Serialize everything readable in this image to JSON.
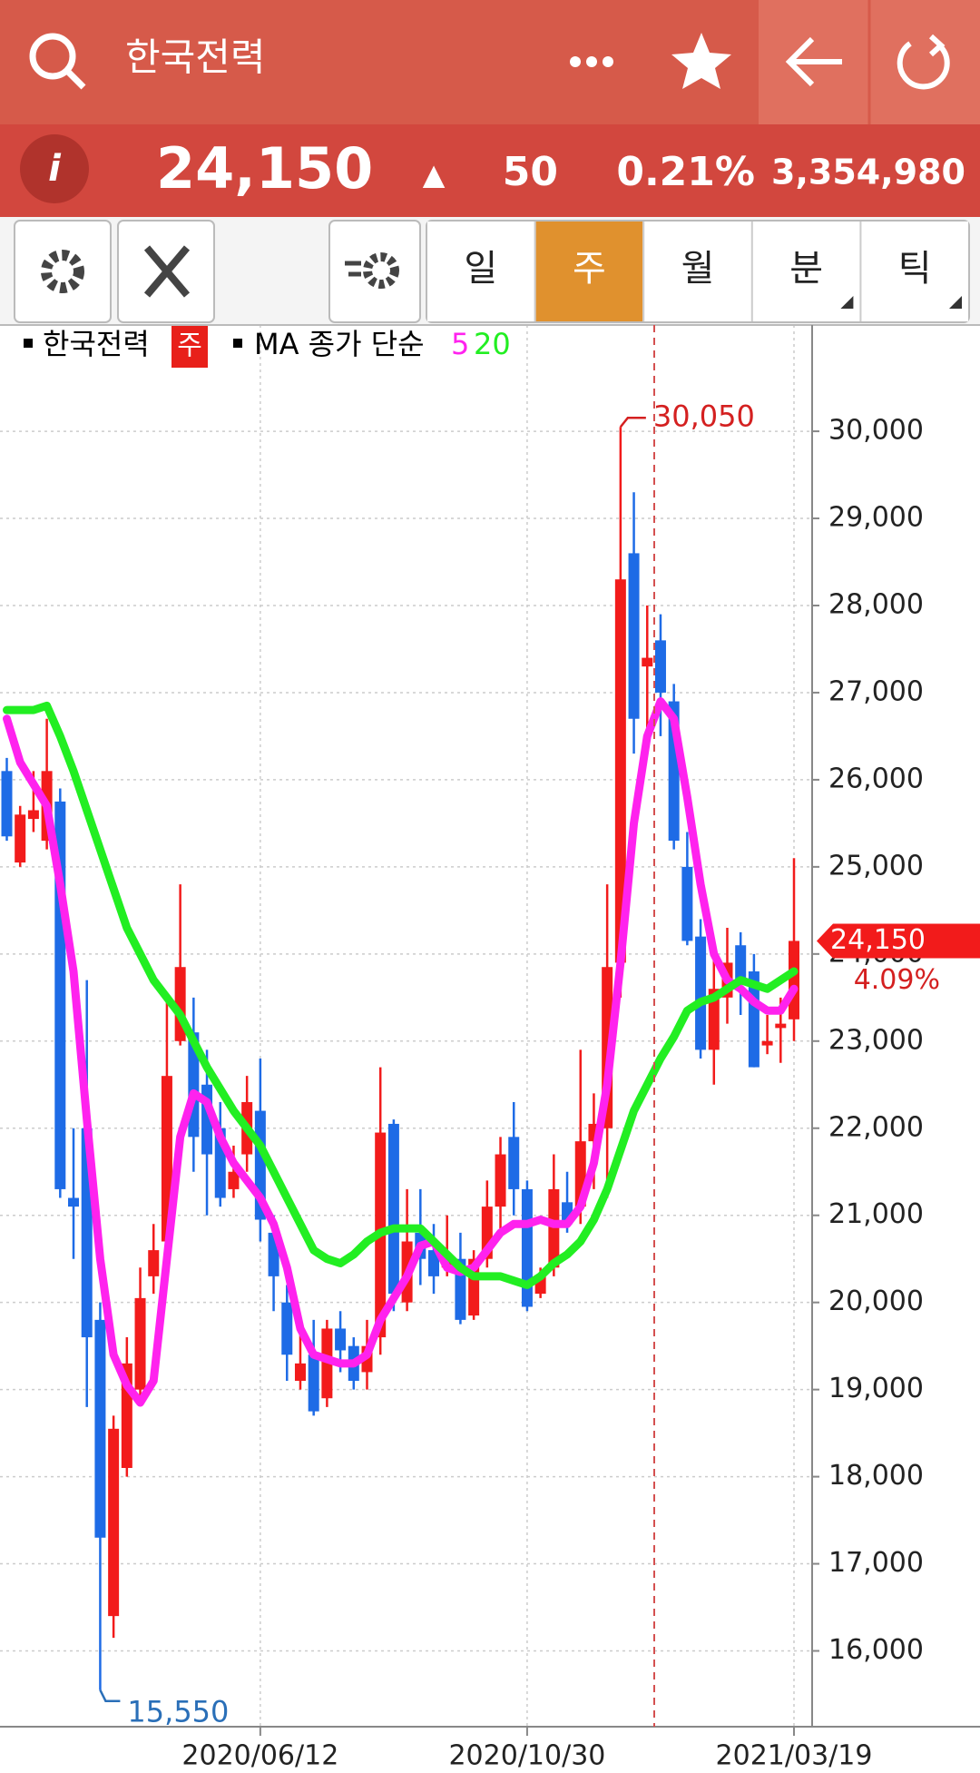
{
  "header": {
    "query": "한국전력",
    "price": "24,150",
    "arrow": "▲",
    "change": "50",
    "change_pct": "0.21%",
    "volume": "3,354,980"
  },
  "tabs": [
    "일",
    "주",
    "월",
    "분",
    "틱"
  ],
  "active_tab": "주",
  "chart_data": {
    "type": "candlestick",
    "period": "주",
    "ma_legend_title": "MA 종가 단순",
    "categories": [
      null,
      null,
      null,
      null,
      null,
      null,
      null,
      null,
      null,
      null,
      null,
      null,
      null,
      null,
      null,
      null,
      null,
      null,
      null,
      "2020/06/12",
      null,
      null,
      null,
      null,
      null,
      null,
      null,
      null,
      null,
      null,
      null,
      null,
      null,
      null,
      null,
      null,
      null,
      null,
      null,
      "2020/10/30",
      null,
      null,
      null,
      null,
      null,
      null,
      null,
      null,
      null,
      null,
      null,
      null,
      null,
      null,
      null,
      null,
      null,
      null,
      null,
      "2021/03/19"
    ],
    "series": [
      {
        "name": "한국전력",
        "up_color": "#f21b1b",
        "down_color": "#1e6be6",
        "open": [
          26100,
          25050,
          25550,
          25300,
          25750,
          21200,
          22000,
          19800,
          16400,
          18100,
          19000,
          20300,
          20700,
          23000,
          23100,
          22500,
          22000,
          21300,
          21700,
          22200,
          20800,
          20000,
          19100,
          19400,
          18900,
          19700,
          19500,
          19200,
          19600,
          22050,
          20000,
          20800,
          20600,
          20400,
          20500,
          19850,
          20500,
          21100,
          21900,
          21300,
          20100,
          20400,
          21150,
          21100,
          21850,
          22000,
          23900,
          28600,
          27300,
          27600,
          26900,
          25000,
          24200,
          22900,
          23500,
          24100,
          23800,
          22950,
          23150,
          23250
        ],
        "high": [
          26250,
          25700,
          26100,
          26700,
          25900,
          22000,
          23700,
          20000,
          18700,
          19600,
          20400,
          20900,
          23500,
          24800,
          23500,
          22900,
          22300,
          21800,
          22600,
          22800,
          21000,
          20200,
          19700,
          19800,
          19800,
          19900,
          19600,
          19800,
          22700,
          22100,
          21300,
          21300,
          20900,
          21000,
          20800,
          20600,
          21400,
          21900,
          22300,
          21400,
          20400,
          21700,
          21500,
          22900,
          22400,
          24800,
          30050,
          29300,
          28000,
          27900,
          27100,
          25400,
          24400,
          24100,
          24300,
          24250,
          24000,
          23300,
          23500,
          25100
        ],
        "low": [
          25300,
          25000,
          25400,
          25200,
          21200,
          20500,
          18800,
          15550,
          16150,
          18000,
          18900,
          20100,
          20500,
          22950,
          21500,
          21000,
          21100,
          21200,
          21500,
          20700,
          19900,
          19100,
          19000,
          18700,
          18800,
          19200,
          19000,
          19000,
          19400,
          19900,
          19900,
          20200,
          20100,
          20300,
          19750,
          19800,
          20400,
          20800,
          21000,
          19900,
          20050,
          20300,
          20800,
          20900,
          21300,
          21200,
          23500,
          26300,
          26600,
          26500,
          25200,
          24100,
          22800,
          22500,
          23200,
          23300,
          22700,
          22850,
          22750,
          23000
        ],
        "close": [
          25350,
          25600,
          25650,
          26100,
          21300,
          21100,
          19600,
          17300,
          18550,
          19300,
          20050,
          20600,
          22600,
          23850,
          21900,
          21700,
          21200,
          21500,
          22300,
          20950,
          20300,
          19400,
          19300,
          18750,
          19700,
          19450,
          19100,
          19500,
          21950,
          20100,
          20700,
          20500,
          20300,
          20500,
          19800,
          20500,
          21100,
          21700,
          21300,
          19950,
          20300,
          21300,
          20900,
          21850,
          22050,
          23850,
          28300,
          26700,
          27400,
          27000,
          25300,
          24150,
          22900,
          23600,
          23900,
          23700,
          22700,
          23000,
          23200,
          24150
        ]
      },
      {
        "name": "5",
        "color": "#ff22ee",
        "values": [
          26700,
          26200,
          25950,
          25700,
          24800,
          23800,
          22100,
          20500,
          19400,
          19050,
          18850,
          19100,
          20500,
          21900,
          22400,
          22300,
          21900,
          21600,
          21400,
          21200,
          20900,
          20400,
          19700,
          19400,
          19350,
          19300,
          19300,
          19400,
          19800,
          20050,
          20300,
          20650,
          20700,
          20400,
          20350,
          20400,
          20600,
          20800,
          20900,
          20900,
          20950,
          20900,
          20900,
          21100,
          21600,
          22500,
          23900,
          25500,
          26500,
          26900,
          26700,
          25800,
          24800,
          24000,
          23700,
          23600,
          23450,
          23350,
          23350,
          23600
        ]
      },
      {
        "name": "20",
        "color": "#22ee22",
        "values": [
          26800,
          26800,
          26800,
          26850,
          26500,
          26100,
          25650,
          25200,
          24750,
          24300,
          24000,
          23700,
          23500,
          23300,
          23000,
          22700,
          22450,
          22200,
          22000,
          21800,
          21500,
          21200,
          20900,
          20600,
          20500,
          20450,
          20550,
          20700,
          20800,
          20850,
          20850,
          20850,
          20700,
          20550,
          20400,
          20300,
          20300,
          20300,
          20250,
          20200,
          20300,
          20450,
          20550,
          20700,
          20950,
          21300,
          21750,
          22200,
          22500,
          22800,
          23050,
          23350,
          23450,
          23500,
          23600,
          23700,
          23650,
          23600,
          23700,
          23800
        ]
      }
    ],
    "ylim": [
      15130,
      31220
    ],
    "yticks": [
      {
        "value": 16000,
        "label": "16,000"
      },
      {
        "value": 17000,
        "label": "17,000"
      },
      {
        "value": 18000,
        "label": "18,000"
      },
      {
        "value": 19000,
        "label": "19,000"
      },
      {
        "value": 20000,
        "label": "20,000"
      },
      {
        "value": 21000,
        "label": "21,000"
      },
      {
        "value": 22000,
        "label": "22,000"
      },
      {
        "value": 23000,
        "label": "23,000"
      },
      {
        "value": 24000,
        "label": "24,000"
      },
      {
        "value": 25000,
        "label": "25,000"
      },
      {
        "value": 26000,
        "label": "26,000"
      },
      {
        "value": 27000,
        "label": "27,000"
      },
      {
        "value": 28000,
        "label": "28,000"
      },
      {
        "value": 29000,
        "label": "29,000"
      },
      {
        "value": 30000,
        "label": "30,000"
      }
    ],
    "grid": true,
    "annotations": [
      {
        "value": 30050,
        "label": "30,050",
        "color": "#d42020"
      },
      {
        "value": 15550,
        "label": "15,550",
        "color": "#2a6fb8"
      }
    ],
    "last_price": {
      "value": 24150,
      "label": "24,150"
    },
    "last_change": {
      "value": 4.09,
      "label": "4.09%"
    }
  }
}
